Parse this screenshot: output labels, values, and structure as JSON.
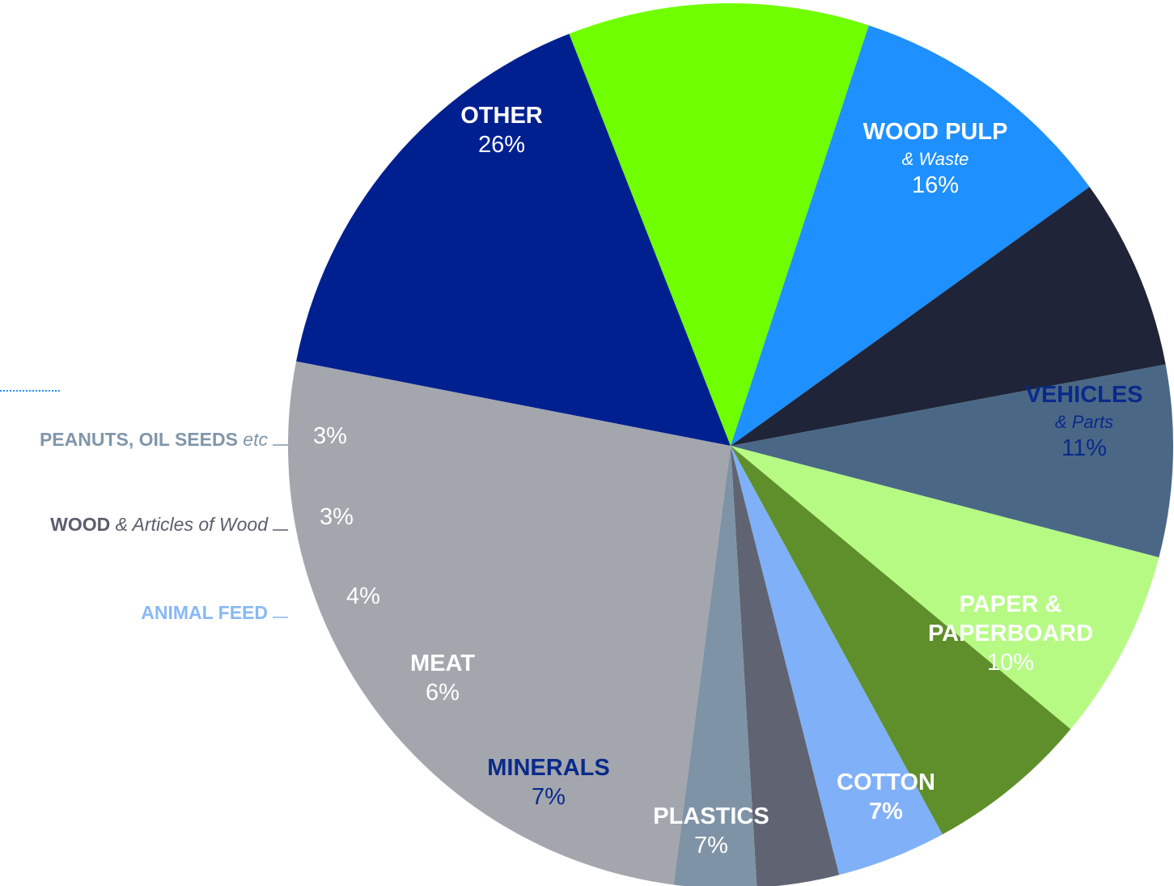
{
  "chart_data": {
    "type": "pie",
    "slices": [
      {
        "key": "wood_pulp",
        "label": "WOOD PULP",
        "sublabel": "& Waste",
        "value": 16,
        "value_label": "16%",
        "color": "#002090",
        "label_color": "#ffffff",
        "pct_bold": false,
        "placement": "inside"
      },
      {
        "key": "vehicles",
        "label": "VEHICLES",
        "sublabel": "& Parts",
        "value": 11,
        "value_label": "11%",
        "color": "#70ff00",
        "label_color": "#0a2a8a",
        "pct_bold": false,
        "placement": "inside"
      },
      {
        "key": "paper",
        "label": "PAPER &",
        "label2": "PAPERBOARD",
        "value": 10,
        "value_label": "10%",
        "color": "#1e90ff",
        "label_color": "#ffffff",
        "pct_bold": false,
        "placement": "inside"
      },
      {
        "key": "cotton",
        "label": "COTTON",
        "value": 7,
        "value_label": "7%",
        "color": "#1f2438",
        "label_color": "#ffffff",
        "pct_bold": true,
        "placement": "inside"
      },
      {
        "key": "plastics",
        "label": "PLASTICS",
        "value": 7,
        "value_label": "7%",
        "color": "#4a6886",
        "label_color": "#ffffff",
        "pct_bold": false,
        "placement": "inside"
      },
      {
        "key": "minerals",
        "label": "MINERALS",
        "value": 7,
        "value_label": "7%",
        "color": "#b6fa84",
        "label_color": "#0a2a8a",
        "pct_bold": false,
        "placement": "inside"
      },
      {
        "key": "meat",
        "label": "MEAT",
        "value": 6,
        "value_label": "6%",
        "color": "#5f8f2a",
        "label_color": "#ffffff",
        "pct_bold": false,
        "placement": "inside"
      },
      {
        "key": "animal_feed",
        "label": "ANIMAL FEED",
        "value": 4,
        "value_label": "4%",
        "color": "#80b0f8",
        "label_color": "#ffffff",
        "outside_color": "#88b8f5",
        "placement": "outside"
      },
      {
        "key": "wood",
        "label": "WOOD",
        "sublabel": "& Articles of Wood",
        "value": 3,
        "value_label": "3%",
        "color": "#606472",
        "label_color": "#ffffff",
        "outside_color": "#5a5e6c",
        "placement": "outside"
      },
      {
        "key": "peanuts",
        "label": "PEANUTS, OIL SEEDS",
        "sublabel": "etc",
        "value": 3,
        "value_label": "3%",
        "color": "#7f93a6",
        "label_color": "#ffffff",
        "outside_color": "#8096aa",
        "placement": "outside"
      },
      {
        "key": "other",
        "label": "OTHER",
        "value": 26,
        "value_label": "26%",
        "color": "#a3a6ad",
        "label_color": "#ffffff",
        "pct_bold": false,
        "placement": "inside"
      }
    ],
    "legend_marker_color": "#1e90ff"
  }
}
